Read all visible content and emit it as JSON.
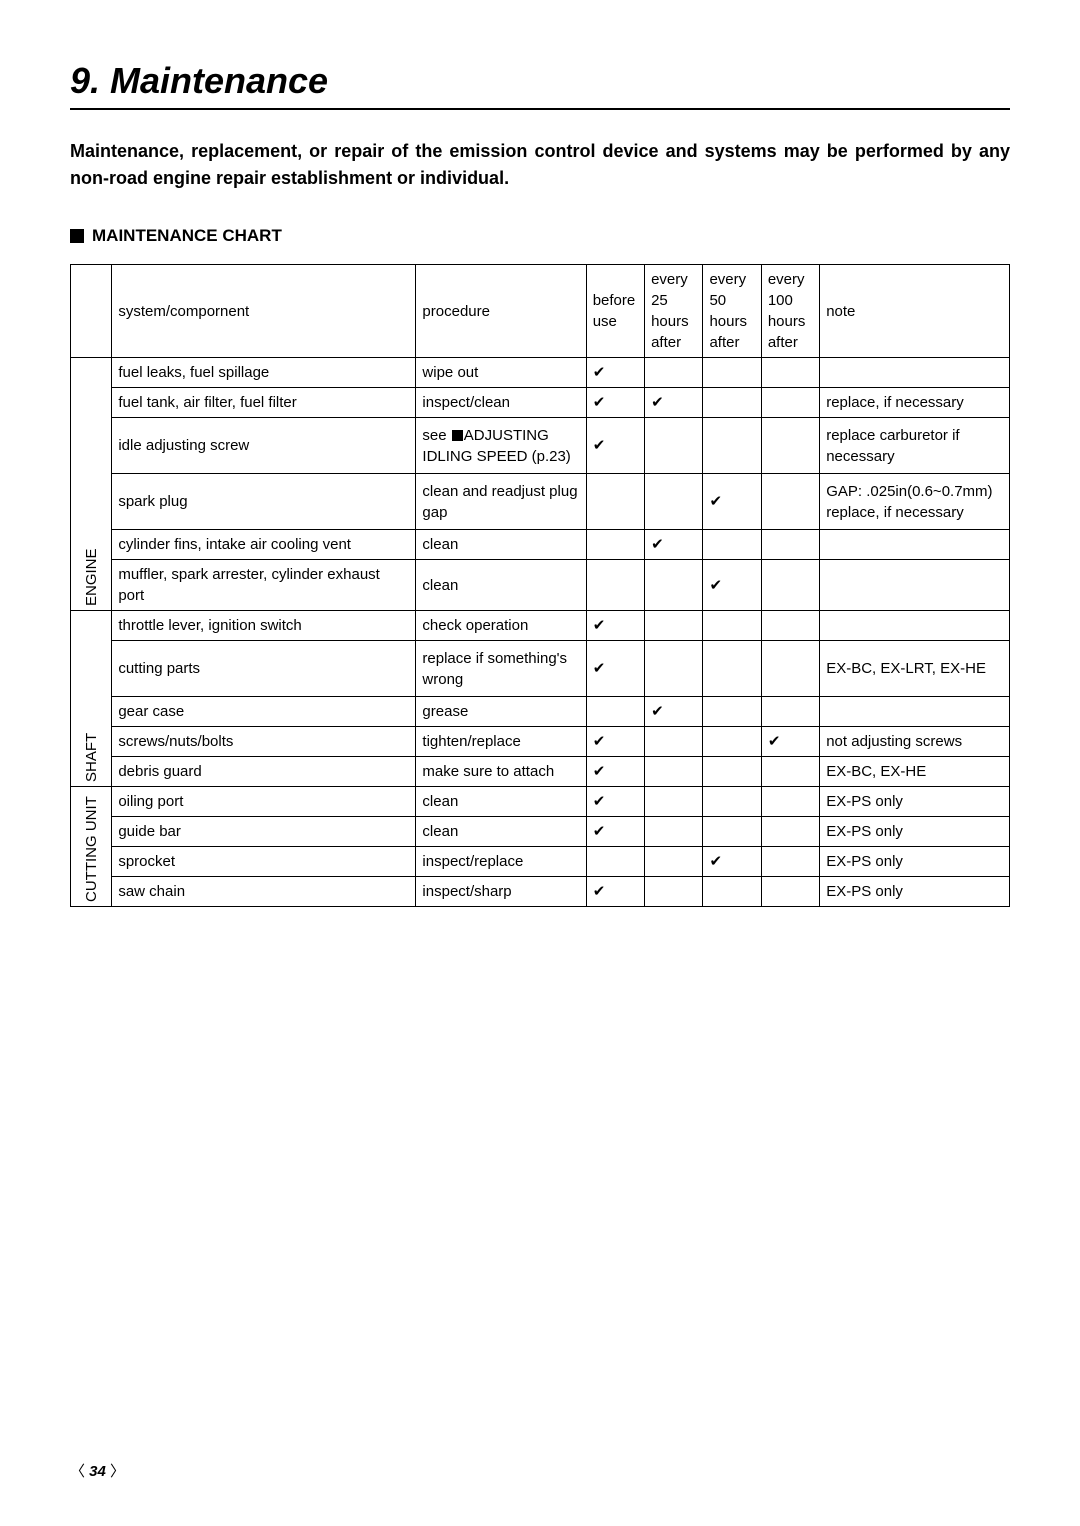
{
  "title": "9. Maintenance",
  "intro": "Maintenance, replacement, or repair of the emission control device and systems may be performed by any non-road engine repair establishment or individual.",
  "section_heading": "MAINTENANCE CHART",
  "headers": {
    "system": "system/compornent",
    "procedure": "procedure",
    "before": "before use",
    "h25": "every 25 hours after",
    "h50": "every 50 hours after",
    "h100": "every 100 hours after",
    "note": "note"
  },
  "groups": {
    "engine": "ENGINE",
    "shaft": "SHAFT",
    "cutting": "CUTTING UNIT"
  },
  "rows": {
    "r1": {
      "sys": "fuel leaks, fuel spillage",
      "proc": "wipe out",
      "note": ""
    },
    "r2": {
      "sys": "fuel tank, air filter, fuel filter",
      "proc": "inspect/clean",
      "note": "replace, if necessary"
    },
    "r3": {
      "sys": "idle adjusting screw",
      "proc_pre": "see ",
      "proc_post": "ADJUSTING IDLING SPEED (p.23)",
      "note": "replace carburetor if necessary"
    },
    "r4": {
      "sys": "spark plug",
      "proc": "clean and readjust plug gap",
      "note": "GAP: .025in(0.6~0.7mm) replace, if necessary"
    },
    "r5": {
      "sys": "cylinder fins, intake air cooling vent",
      "proc": "clean",
      "note": ""
    },
    "r6": {
      "sys": "muffler, spark arrester, cylinder exhaust port",
      "proc": "clean",
      "note": ""
    },
    "r7": {
      "sys": "throttle lever, ignition switch",
      "proc": "check operation",
      "note": ""
    },
    "r8": {
      "sys": "cutting parts",
      "proc": "replace if something's wrong",
      "note": "EX-BC, EX-LRT, EX-HE"
    },
    "r9": {
      "sys": "gear case",
      "proc": "grease",
      "note": ""
    },
    "r10": {
      "sys": "screws/nuts/bolts",
      "proc": "tighten/replace",
      "note": "not adjusting screws"
    },
    "r11": {
      "sys": "debris guard",
      "proc": "make sure to attach",
      "note": "EX-BC, EX-HE"
    },
    "r12": {
      "sys": "oiling port",
      "proc": "clean",
      "note": "EX-PS only"
    },
    "r13": {
      "sys": "guide bar",
      "proc": "clean",
      "note": "EX-PS only"
    },
    "r14": {
      "sys": "sprocket",
      "proc": "inspect/replace",
      "note": "EX-PS only"
    },
    "r15": {
      "sys": "saw chain",
      "proc": "inspect/sharp",
      "note": "EX-PS only"
    }
  },
  "checkmark": "✔",
  "page_number": "34"
}
